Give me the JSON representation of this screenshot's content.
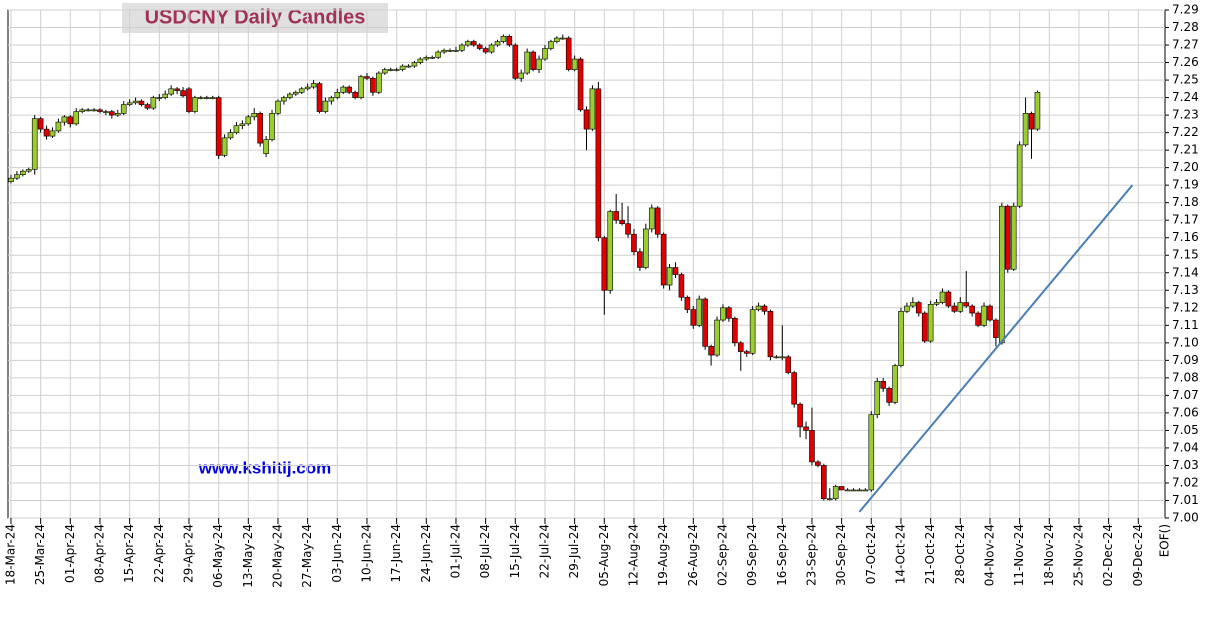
{
  "chart_data": {
    "type": "candlestick",
    "title": "USDCNY Daily Candles",
    "watermark": "www.kshitij.com",
    "up_color": "#9acd32",
    "down_color": "#e00000",
    "grid": true,
    "trend_color": "#4a7fb5",
    "x_end_label": "EOF()",
    "xlim": [
      -0.5,
      194.5
    ],
    "ylim": [
      7.0,
      7.29
    ],
    "xticks": [
      {
        "value": 0,
        "label": "18-Mar-24"
      },
      {
        "value": 5,
        "label": "25-Mar-24"
      },
      {
        "value": 10,
        "label": "01-Apr-24"
      },
      {
        "value": 15,
        "label": "08-Apr-24"
      },
      {
        "value": 20,
        "label": "15-Apr-24"
      },
      {
        "value": 25,
        "label": "22-Apr-24"
      },
      {
        "value": 30,
        "label": "29-Apr-24"
      },
      {
        "value": 35,
        "label": "06-May-24"
      },
      {
        "value": 40,
        "label": "13-May-24"
      },
      {
        "value": 45,
        "label": "20-May-24"
      },
      {
        "value": 50,
        "label": "27-May-24"
      },
      {
        "value": 55,
        "label": "03-Jun-24"
      },
      {
        "value": 60,
        "label": "10-Jun-24"
      },
      {
        "value": 65,
        "label": "17-Jun-24"
      },
      {
        "value": 70,
        "label": "24-Jun-24"
      },
      {
        "value": 75,
        "label": "01-Jul-24"
      },
      {
        "value": 80,
        "label": "08-Jul-24"
      },
      {
        "value": 85,
        "label": "15-Jul-24"
      },
      {
        "value": 90,
        "label": "22-Jul-24"
      },
      {
        "value": 95,
        "label": "29-Jul-24"
      },
      {
        "value": 100,
        "label": "05-Aug-24"
      },
      {
        "value": 105,
        "label": "12-Aug-24"
      },
      {
        "value": 110,
        "label": "19-Aug-24"
      },
      {
        "value": 115,
        "label": "26-Aug-24"
      },
      {
        "value": 120,
        "label": "02-Sep-24"
      },
      {
        "value": 125,
        "label": "09-Sep-24"
      },
      {
        "value": 130,
        "label": "16-Sep-24"
      },
      {
        "value": 135,
        "label": "23-Sep-24"
      },
      {
        "value": 140,
        "label": "30-Sep-24"
      },
      {
        "value": 145,
        "label": "07-Oct-24"
      },
      {
        "value": 150,
        "label": "14-Oct-24"
      },
      {
        "value": 155,
        "label": "21-Oct-24"
      },
      {
        "value": 160,
        "label": "28-Oct-24"
      },
      {
        "value": 165,
        "label": "04-Nov-24"
      },
      {
        "value": 170,
        "label": "11-Nov-24"
      },
      {
        "value": 175,
        "label": "18-Nov-24"
      },
      {
        "value": 180,
        "label": "25-Nov-24"
      },
      {
        "value": 185,
        "label": "02-Dec-24"
      },
      {
        "value": 190,
        "label": "09-Dec-24"
      }
    ],
    "yticks": [
      {
        "value": 7.0,
        "label": "7.00"
      },
      7.01,
      7.02,
      7.03,
      7.04,
      7.05,
      7.06,
      7.07,
      7.08,
      7.09,
      {
        "value": 7.1,
        "label": "7.10"
      },
      7.11,
      7.12,
      7.13,
      7.14,
      7.15,
      7.16,
      7.17,
      7.18,
      7.19,
      {
        "value": 7.2,
        "label": "7.20"
      },
      7.21,
      7.22,
      7.23,
      7.24,
      7.25,
      7.26,
      7.27,
      7.28,
      7.29
    ],
    "trendline": {
      "x": [
        143,
        189
      ],
      "y": [
        7.0035,
        7.19
      ]
    },
    "candles": [
      [
        7.192,
        7.196,
        7.191,
        7.194
      ],
      [
        7.194,
        7.198,
        7.193,
        7.196
      ],
      [
        7.196,
        7.199,
        7.195,
        7.198
      ],
      [
        7.198,
        7.2,
        7.197,
        7.199
      ],
      [
        7.199,
        7.23,
        7.196,
        7.228
      ],
      [
        7.228,
        7.229,
        7.22,
        7.222
      ],
      [
        7.222,
        7.224,
        7.216,
        7.218
      ],
      [
        7.218,
        7.223,
        7.217,
        7.221
      ],
      [
        7.221,
        7.228,
        7.22,
        7.226
      ],
      [
        7.226,
        7.23,
        7.224,
        7.229
      ],
      [
        7.229,
        7.23,
        7.223,
        7.225
      ],
      [
        7.225,
        7.234,
        7.224,
        7.232
      ],
      [
        7.232,
        7.234,
        7.231,
        7.233
      ],
      [
        7.233,
        7.234,
        7.232,
        7.233
      ],
      [
        7.233,
        7.234,
        7.232,
        7.233
      ],
      [
        7.233,
        7.234,
        7.231,
        7.232
      ],
      [
        7.232,
        7.233,
        7.23,
        7.232
      ],
      [
        7.232,
        7.233,
        7.228,
        7.23
      ],
      [
        7.23,
        7.233,
        7.229,
        7.231
      ],
      [
        7.231,
        7.238,
        7.23,
        7.236
      ],
      [
        7.236,
        7.239,
        7.235,
        7.237
      ],
      [
        7.237,
        7.24,
        7.236,
        7.238
      ],
      [
        7.238,
        7.239,
        7.235,
        7.236
      ],
      [
        7.236,
        7.237,
        7.233,
        7.234
      ],
      [
        7.234,
        7.241,
        7.233,
        7.24
      ],
      [
        7.24,
        7.242,
        7.238,
        7.24
      ],
      [
        7.24,
        7.244,
        7.239,
        7.242
      ],
      [
        7.242,
        7.247,
        7.241,
        7.245
      ],
      [
        7.245,
        7.246,
        7.242,
        7.244
      ],
      [
        7.244,
        7.246,
        7.24,
        7.241
      ],
      [
        7.245,
        7.246,
        7.231,
        7.232
      ],
      [
        7.232,
        7.241,
        7.231,
        7.24
      ],
      [
        7.24,
        7.241,
        7.239,
        7.24
      ],
      [
        7.24,
        7.241,
        7.239,
        7.24
      ],
      [
        7.24,
        7.241,
        7.239,
        7.24
      ],
      [
        7.24,
        7.241,
        7.205,
        7.207
      ],
      [
        7.207,
        7.219,
        7.206,
        7.217
      ],
      [
        7.217,
        7.222,
        7.216,
        7.22
      ],
      [
        7.22,
        7.226,
        7.219,
        7.224
      ],
      [
        7.224,
        7.227,
        7.222,
        7.225
      ],
      [
        7.225,
        7.23,
        7.224,
        7.229
      ],
      [
        7.229,
        7.234,
        7.227,
        7.231
      ],
      [
        7.231,
        7.232,
        7.212,
        7.214
      ],
      [
        7.208,
        7.218,
        7.206,
        7.216
      ],
      [
        7.216,
        7.233,
        7.215,
        7.231
      ],
      [
        7.231,
        7.239,
        7.23,
        7.238
      ],
      [
        7.238,
        7.241,
        7.236,
        7.24
      ],
      [
        7.24,
        7.243,
        7.239,
        7.242
      ],
      [
        7.242,
        7.244,
        7.241,
        7.243
      ],
      [
        7.243,
        7.246,
        7.242,
        7.245
      ],
      [
        7.245,
        7.248,
        7.244,
        7.246
      ],
      [
        7.246,
        7.25,
        7.245,
        7.248
      ],
      [
        7.248,
        7.249,
        7.231,
        7.232
      ],
      [
        7.232,
        7.24,
        7.231,
        7.238
      ],
      [
        7.238,
        7.241,
        7.236,
        7.24
      ],
      [
        7.24,
        7.245,
        7.239,
        7.243
      ],
      [
        7.243,
        7.247,
        7.242,
        7.246
      ],
      [
        7.246,
        7.247,
        7.242,
        7.243
      ],
      [
        7.243,
        7.244,
        7.239,
        7.24
      ],
      [
        7.24,
        7.253,
        7.239,
        7.252
      ],
      [
        7.252,
        7.254,
        7.25,
        7.251
      ],
      [
        7.251,
        7.252,
        7.241,
        7.243
      ],
      [
        7.243,
        7.255,
        7.242,
        7.254
      ],
      [
        7.254,
        7.257,
        7.253,
        7.256
      ],
      [
        7.256,
        7.257,
        7.255,
        7.256
      ],
      [
        7.256,
        7.257,
        7.255,
        7.256
      ],
      [
        7.256,
        7.259,
        7.255,
        7.258
      ],
      [
        7.258,
        7.259,
        7.257,
        7.258
      ],
      [
        7.258,
        7.261,
        7.257,
        7.26
      ],
      [
        7.26,
        7.263,
        7.259,
        7.262
      ],
      [
        7.262,
        7.264,
        7.261,
        7.263
      ],
      [
        7.263,
        7.264,
        7.262,
        7.263
      ],
      [
        7.263,
        7.267,
        7.262,
        7.266
      ],
      [
        7.266,
        7.268,
        7.265,
        7.267
      ],
      [
        7.267,
        7.268,
        7.266,
        7.267
      ],
      [
        7.267,
        7.269,
        7.266,
        7.267
      ],
      [
        7.267,
        7.271,
        7.266,
        7.27
      ],
      [
        7.27,
        7.273,
        7.269,
        7.272
      ],
      [
        7.272,
        7.273,
        7.269,
        7.27
      ],
      [
        7.27,
        7.271,
        7.267,
        7.268
      ],
      [
        7.268,
        7.269,
        7.265,
        7.266
      ],
      [
        7.266,
        7.271,
        7.265,
        7.27
      ],
      [
        7.27,
        7.273,
        7.269,
        7.272
      ],
      [
        7.272,
        7.276,
        7.271,
        7.275
      ],
      [
        7.275,
        7.276,
        7.269,
        7.27
      ],
      [
        7.27,
        7.271,
        7.25,
        7.251
      ],
      [
        7.251,
        7.256,
        7.249,
        7.254
      ],
      [
        7.254,
        7.268,
        7.253,
        7.266
      ],
      [
        7.266,
        7.267,
        7.255,
        7.256
      ],
      [
        7.256,
        7.264,
        7.254,
        7.262
      ],
      [
        7.262,
        7.27,
        7.261,
        7.268
      ],
      [
        7.268,
        7.273,
        7.267,
        7.272
      ],
      [
        7.272,
        7.275,
        7.271,
        7.274
      ],
      [
        7.274,
        7.276,
        7.273,
        7.274
      ],
      [
        7.274,
        7.275,
        7.255,
        7.256
      ],
      [
        7.256,
        7.264,
        7.255,
        7.262
      ],
      [
        7.262,
        7.263,
        7.232,
        7.233
      ],
      [
        7.233,
        7.235,
        7.21,
        7.222
      ],
      [
        7.222,
        7.247,
        7.221,
        7.245
      ],
      [
        7.245,
        7.249,
        7.158,
        7.16
      ],
      [
        7.16,
        7.161,
        7.116,
        7.13
      ],
      [
        7.13,
        7.176,
        7.128,
        7.175
      ],
      [
        7.175,
        7.185,
        7.168,
        7.17
      ],
      [
        7.17,
        7.18,
        7.167,
        7.168
      ],
      [
        7.168,
        7.178,
        7.16,
        7.162
      ],
      [
        7.162,
        7.165,
        7.15,
        7.152
      ],
      [
        7.152,
        7.154,
        7.141,
        7.143
      ],
      [
        7.143,
        7.168,
        7.142,
        7.165
      ],
      [
        7.165,
        7.179,
        7.163,
        7.177
      ],
      [
        7.177,
        7.178,
        7.16,
        7.162
      ],
      [
        7.162,
        7.163,
        7.131,
        7.133
      ],
      [
        7.133,
        7.145,
        7.13,
        7.143
      ],
      [
        7.143,
        7.146,
        7.137,
        7.139
      ],
      [
        7.139,
        7.14,
        7.124,
        7.126
      ],
      [
        7.126,
        7.127,
        7.117,
        7.119
      ],
      [
        7.119,
        7.121,
        7.108,
        7.11
      ],
      [
        7.11,
        7.127,
        7.109,
        7.125
      ],
      [
        7.125,
        7.126,
        7.096,
        7.098
      ],
      [
        7.098,
        7.099,
        7.087,
        7.093
      ],
      [
        7.093,
        7.115,
        7.092,
        7.113
      ],
      [
        7.113,
        7.122,
        7.112,
        7.12
      ],
      [
        7.12,
        7.121,
        7.112,
        7.114
      ],
      [
        7.114,
        7.115,
        7.098,
        7.1
      ],
      [
        7.1,
        7.101,
        7.084,
        7.095
      ],
      [
        7.095,
        7.096,
        7.092,
        7.094
      ],
      [
        7.094,
        7.121,
        7.093,
        7.119
      ],
      [
        7.119,
        7.123,
        7.118,
        7.121
      ],
      [
        7.121,
        7.122,
        7.116,
        7.118
      ],
      [
        7.118,
        7.119,
        7.09,
        7.092
      ],
      [
        7.092,
        7.093,
        7.091,
        7.092
      ],
      [
        7.092,
        7.11,
        7.09,
        7.092
      ],
      [
        7.092,
        7.093,
        7.082,
        7.083
      ],
      [
        7.083,
        7.084,
        7.063,
        7.065
      ],
      [
        7.065,
        7.066,
        7.046,
        7.052
      ],
      [
        7.052,
        7.055,
        7.045,
        7.05
      ],
      [
        7.05,
        7.063,
        7.03,
        7.032
      ],
      [
        7.032,
        7.033,
        7.029,
        7.03
      ],
      [
        7.03,
        7.031,
        7.01,
        7.011
      ],
      [
        7.011,
        7.017,
        7.01,
        7.011
      ],
      [
        7.011,
        7.019,
        7.01,
        7.018
      ],
      [
        7.018,
        7.018,
        7.016,
        7.016
      ],
      [
        7.016,
        7.017,
        7.016,
        7.016
      ],
      [
        7.016,
        7.017,
        7.016,
        7.016
      ],
      [
        7.016,
        7.017,
        7.016,
        7.016
      ],
      [
        7.016,
        7.017,
        7.016,
        7.016
      ],
      [
        7.016,
        7.061,
        7.015,
        7.059
      ],
      [
        7.059,
        7.08,
        7.057,
        7.078
      ],
      [
        7.078,
        7.08,
        7.072,
        7.074
      ],
      [
        7.074,
        7.075,
        7.064,
        7.066
      ],
      [
        7.066,
        7.088,
        7.065,
        7.087
      ],
      [
        7.087,
        7.12,
        7.086,
        7.118
      ],
      [
        7.118,
        7.123,
        7.117,
        7.121
      ],
      [
        7.121,
        7.126,
        7.12,
        7.123
      ],
      [
        7.123,
        7.124,
        7.115,
        7.117
      ],
      [
        7.117,
        7.118,
        7.1,
        7.101
      ],
      [
        7.101,
        7.124,
        7.1,
        7.122
      ],
      [
        7.122,
        7.125,
        7.121,
        7.123
      ],
      [
        7.123,
        7.131,
        7.122,
        7.129
      ],
      [
        7.129,
        7.13,
        7.12,
        7.121
      ],
      [
        7.121,
        7.123,
        7.117,
        7.118
      ],
      [
        7.118,
        7.126,
        7.117,
        7.123
      ],
      [
        7.123,
        7.141,
        7.12,
        7.121
      ],
      [
        7.121,
        7.122,
        7.115,
        7.117
      ],
      [
        7.117,
        7.118,
        7.109,
        7.11
      ],
      [
        7.11,
        7.123,
        7.109,
        7.121
      ],
      [
        7.121,
        7.122,
        7.112,
        7.113
      ],
      [
        7.113,
        7.114,
        7.098,
        7.103
      ],
      [
        7.1,
        7.18,
        7.099,
        7.178
      ],
      [
        7.178,
        7.179,
        7.14,
        7.142
      ],
      [
        7.142,
        7.18,
        7.141,
        7.178
      ],
      [
        7.178,
        7.215,
        7.177,
        7.213
      ],
      [
        7.213,
        7.24,
        7.212,
        7.231
      ],
      [
        7.231,
        7.232,
        7.205,
        7.222
      ],
      [
        7.222,
        7.244,
        7.221,
        7.243
      ]
    ]
  }
}
